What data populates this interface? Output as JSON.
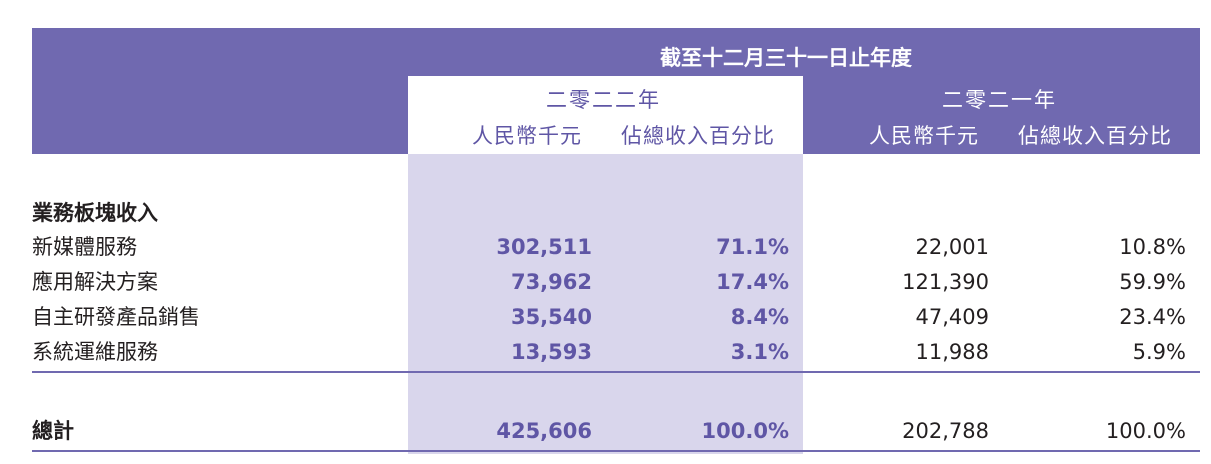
{
  "header": {
    "period_title": "截至十二月三十一日止年度",
    "year_2022": "二零二二年",
    "year_2021": "二零二一年",
    "col_amount_2022": "人民幣千元",
    "col_pct_2022": "佔總收入百分比",
    "col_amount_2021": "人民幣千元",
    "col_pct_2021": "佔總收入百分比"
  },
  "section_title": "業務板塊收入",
  "rows": [
    {
      "label": "新媒體服務",
      "amount_2022": "302,511",
      "pct_2022": "71.1%",
      "amount_2021": "22,001",
      "pct_2021": "10.8%"
    },
    {
      "label": "應用解決方案",
      "amount_2022": "73,962",
      "pct_2022": "17.4%",
      "amount_2021": "121,390",
      "pct_2021": "59.9%"
    },
    {
      "label": "自主研發產品銷售",
      "amount_2022": "35,540",
      "pct_2022": "8.4%",
      "amount_2021": "47,409",
      "pct_2021": "23.4%"
    },
    {
      "label": "系統運維服務",
      "amount_2022": "13,593",
      "pct_2022": "3.1%",
      "amount_2021": "11,988",
      "pct_2021": "5.9%"
    }
  ],
  "total": {
    "label": "總計",
    "amount_2022": "425,606",
    "pct_2022": "100.0%",
    "amount_2021": "202,788",
    "pct_2021": "100.0%"
  },
  "colors": {
    "header_purple": "#7069b0",
    "highlight_lavender": "#d9d6ec",
    "value_purple": "#5f56a5"
  }
}
